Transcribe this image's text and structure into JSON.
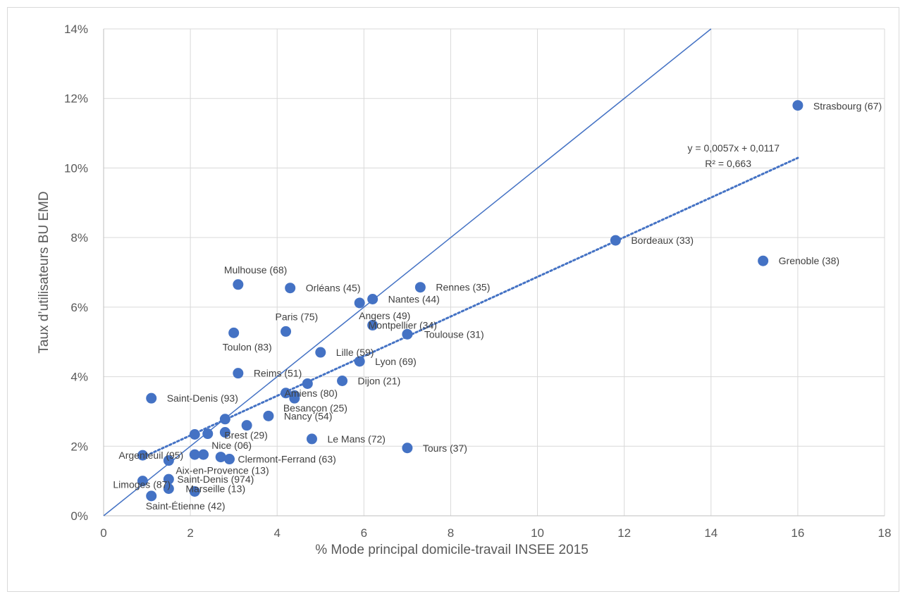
{
  "chart_data": {
    "type": "scatter",
    "xlabel": "% Mode principal domicile-travail INSEE 2015",
    "ylabel": "Taux d’utilisateurs BU EMD",
    "xlim": [
      0,
      18
    ],
    "ylim": [
      0,
      0.14
    ],
    "x_ticks": [
      0,
      2,
      4,
      6,
      8,
      10,
      12,
      14,
      16,
      18
    ],
    "x_tick_labels": [
      "0",
      "2",
      "4",
      "6",
      "8",
      "10",
      "12",
      "14",
      "16",
      "18"
    ],
    "y_ticks": [
      0,
      0.02,
      0.04,
      0.06,
      0.08,
      0.1,
      0.12,
      0.14
    ],
    "y_tick_labels": [
      "0%",
      "2%",
      "4%",
      "6%",
      "8%",
      "10%",
      "12%",
      "14%"
    ],
    "grid": true,
    "marker_color": "#4472c4",
    "line_color": "#4472c4",
    "trendline": {
      "slope": 0.0057,
      "intercept": 0.0117,
      "x_range": [
        0.9,
        16
      ],
      "equation": "y = 0,0057x + 0,0117",
      "r2": "R² = 0,663",
      "style": "dotted"
    },
    "reference_line": {
      "from": [
        0,
        0
      ],
      "to": [
        14,
        0.14
      ],
      "style": "solid"
    },
    "points": [
      {
        "label": "Strasbourg (67)",
        "x": 16.0,
        "y": 0.118
      },
      {
        "label": "Bordeaux (33)",
        "x": 11.8,
        "y": 0.0792
      },
      {
        "label": "Grenoble (38)",
        "x": 15.2,
        "y": 0.0733
      },
      {
        "label": "Mulhouse (68)",
        "x": 3.1,
        "y": 0.0665
      },
      {
        "label": "Orléans (45)",
        "x": 4.3,
        "y": 0.0655
      },
      {
        "label": "Rennes (35)",
        "x": 7.3,
        "y": 0.0657
      },
      {
        "label": "Nantes (44)",
        "x": 6.2,
        "y": 0.0623
      },
      {
        "label": "Angers (49)",
        "x": 5.9,
        "y": 0.0612
      },
      {
        "label": "Montpellier (34)",
        "x": 6.2,
        "y": 0.0548
      },
      {
        "label": "Paris (75)",
        "x": 4.2,
        "y": 0.053
      },
      {
        "label": "Toulon (83)",
        "x": 3.0,
        "y": 0.0526
      },
      {
        "label": "Toulouse (31)",
        "x": 7.0,
        "y": 0.0522
      },
      {
        "label": "Lille (59)",
        "x": 5.0,
        "y": 0.047
      },
      {
        "label": "Lyon (69)",
        "x": 5.9,
        "y": 0.0444
      },
      {
        "label": "Reims (51)",
        "x": 3.1,
        "y": 0.041
      },
      {
        "label": "Dijon (21)",
        "x": 5.5,
        "y": 0.0388
      },
      {
        "label": "",
        "x": 4.7,
        "y": 0.038
      },
      {
        "label": "Amiens (80)",
        "x": 4.2,
        "y": 0.0353
      },
      {
        "label": "Besançon (25)",
        "x": 4.4,
        "y": 0.0338
      },
      {
        "label": "",
        "x": 4.4,
        "y": 0.0346
      },
      {
        "label": "Saint-Denis (93)",
        "x": 1.1,
        "y": 0.0338
      },
      {
        "label": "Nancy (54)",
        "x": 3.8,
        "y": 0.0287
      },
      {
        "label": "",
        "x": 2.8,
        "y": 0.0278
      },
      {
        "label": "",
        "x": 3.3,
        "y": 0.026
      },
      {
        "label": "Brest (29)",
        "x": 2.8,
        "y": 0.024
      },
      {
        "label": "",
        "x": 2.1,
        "y": 0.0234
      },
      {
        "label": "",
        "x": 2.4,
        "y": 0.0236
      },
      {
        "label": "Le Mans (72)",
        "x": 4.8,
        "y": 0.0221
      },
      {
        "label": "Tours (37)",
        "x": 7.0,
        "y": 0.0195
      },
      {
        "label": "Argenteuil (95)",
        "x": 0.9,
        "y": 0.0174
      },
      {
        "label": "Nice (06)",
        "x": 2.1,
        "y": 0.0176
      },
      {
        "label": "",
        "x": 2.3,
        "y": 0.0176
      },
      {
        "label": "",
        "x": 2.7,
        "y": 0.0169
      },
      {
        "label": "Clermont-Ferrand (63)",
        "x": 2.9,
        "y": 0.0163
      },
      {
        "label": "Aix-en-Provence (13)",
        "x": 1.5,
        "y": 0.0159
      },
      {
        "label": "Limoges (87)",
        "x": 0.9,
        "y": 0.01
      },
      {
        "label": "Saint-Denis (974)",
        "x": 1.5,
        "y": 0.0105
      },
      {
        "label": "Marseille (13)",
        "x": 1.5,
        "y": 0.0078
      },
      {
        "label": "",
        "x": 2.1,
        "y": 0.007
      },
      {
        "label": "Saint-Étienne (42)",
        "x": 1.1,
        "y": 0.0057
      }
    ]
  }
}
